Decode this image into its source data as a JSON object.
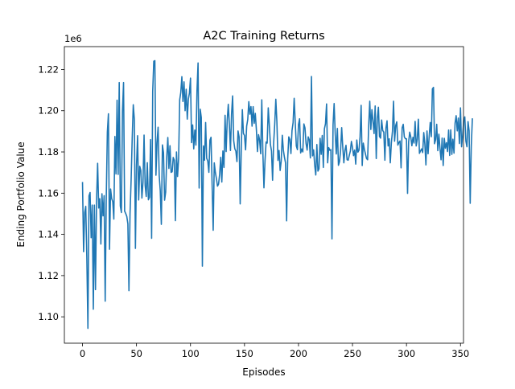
{
  "chart_data": {
    "type": "line",
    "title": "A2C Training Returns",
    "xlabel": "Episodes",
    "ylabel": "Ending Portfolio Value",
    "y_offset_label": "1e6",
    "xlim": [
      -16.8,
      352.8
    ],
    "ylim": [
      1.0872,
      1.2311
    ],
    "x_ticks": [
      0,
      50,
      100,
      150,
      200,
      250,
      300,
      350
    ],
    "x_tick_labels": [
      "0",
      "50",
      "100",
      "150",
      "200",
      "250",
      "300",
      "350"
    ],
    "y_ticks": [
      1.1,
      1.12,
      1.14,
      1.16,
      1.18,
      1.2,
      1.22
    ],
    "y_tick_labels": [
      "1.10",
      "1.12",
      "1.14",
      "1.16",
      "1.18",
      "1.20",
      "1.22"
    ],
    "grid": false,
    "legend": "none",
    "series_color": "#1f77b4",
    "series": [
      {
        "x_start": 0,
        "x_step": 1,
        "values": [
          1.1651,
          1.1316,
          1.1506,
          1.1536,
          1.1288,
          1.0944,
          1.1587,
          1.1603,
          1.1384,
          1.1542,
          1.1037,
          1.1542,
          1.1132,
          1.1565,
          1.1745,
          1.1528,
          1.1573,
          1.1353,
          1.1597,
          1.149,
          1.1588,
          1.1076,
          1.1579,
          1.1896,
          1.1985,
          1.1328,
          1.162,
          1.1574,
          1.1559,
          1.1474,
          1.1875,
          1.1693,
          1.2051,
          1.1691,
          1.2137,
          1.1538,
          1.1506,
          1.1997,
          1.2137,
          1.1513,
          1.1501,
          1.1487,
          1.1451,
          1.1127,
          1.15,
          1.1662,
          1.1864,
          1.2029,
          1.1958,
          1.1332,
          1.1734,
          1.1879,
          1.1567,
          1.173,
          1.171,
          1.1576,
          1.1653,
          1.1882,
          1.1638,
          1.1584,
          1.1748,
          1.1568,
          1.158,
          1.186,
          1.1381,
          1.2094,
          1.224,
          1.2243,
          1.1687,
          1.1845,
          1.192,
          1.1687,
          1.1612,
          1.1449,
          1.1834,
          1.1797,
          1.1566,
          1.1605,
          1.1776,
          1.187,
          1.172,
          1.183,
          1.1701,
          1.1704,
          1.1773,
          1.176,
          1.1467,
          1.18,
          1.1681,
          1.1768,
          1.2053,
          1.2089,
          1.2165,
          1.2045,
          1.214,
          1.2,
          1.2104,
          1.1959,
          1.2055,
          1.2086,
          1.2158,
          1.1845,
          1.1931,
          1.1815,
          1.1906,
          1.1833,
          1.2097,
          1.2232,
          1.1625,
          1.2007,
          1.1967,
          1.1246,
          1.1829,
          1.176,
          1.1943,
          1.1769,
          1.1756,
          1.1701,
          1.1857,
          1.1871,
          1.1643,
          1.142,
          1.1747,
          1.1701,
          1.1671,
          1.1634,
          1.1644,
          1.1693,
          1.1774,
          1.1654,
          1.1805,
          1.1725,
          1.1978,
          1.1802,
          1.1955,
          1.2031,
          1.1931,
          1.1807,
          1.1982,
          1.2072,
          1.1855,
          1.1816,
          1.1804,
          1.1753,
          1.1902,
          1.1873,
          1.1548,
          1.1813,
          1.2005,
          1.189,
          1.188,
          1.181,
          1.1925,
          1.1957,
          1.2044,
          1.1983,
          1.202,
          1.1925,
          1.202,
          1.1939,
          1.1987,
          1.1908,
          1.1802,
          1.1884,
          1.1857,
          1.1791,
          1.2053,
          1.1799,
          1.1626,
          1.1758,
          1.1848,
          1.1843,
          1.2014,
          1.193,
          1.1836,
          1.1805,
          1.1663,
          1.1844,
          1.1936,
          1.2056,
          1.1946,
          1.1759,
          1.1807,
          1.171,
          1.1756,
          1.1881,
          1.1808,
          1.1774,
          1.1747,
          1.1466,
          1.1766,
          1.1873,
          1.1861,
          1.1792,
          1.1904,
          1.1942,
          1.206,
          1.1942,
          1.1829,
          1.1811,
          1.1933,
          1.1961,
          1.1795,
          1.1814,
          1.18,
          1.1936,
          1.1917,
          1.1841,
          1.1809,
          1.1873,
          1.1859,
          1.1771,
          1.2166,
          1.1781,
          1.181,
          1.1736,
          1.1688,
          1.1836,
          1.1707,
          1.1718,
          1.1866,
          1.1788,
          1.188,
          1.1725,
          1.1912,
          1.1937,
          1.2033,
          1.1747,
          1.1821,
          1.1808,
          1.1811,
          1.1378,
          1.1931,
          1.2035,
          1.1888,
          1.179,
          1.1914,
          1.1735,
          1.1753,
          1.1808,
          1.1918,
          1.1823,
          1.1747,
          1.1808,
          1.1832,
          1.1762,
          1.176,
          1.1783,
          1.1804,
          1.1851,
          1.1822,
          1.1782,
          1.1809,
          1.1741,
          1.1858,
          1.1799,
          1.1808,
          1.1873,
          1.2026,
          1.1734,
          1.1843,
          1.1813,
          1.179,
          1.1768,
          1.1762,
          1.1927,
          1.2046,
          1.1909,
          1.2005,
          1.195,
          1.1889,
          1.2023,
          1.1768,
          1.1962,
          1.2017,
          1.1875,
          1.1867,
          1.1955,
          1.1904,
          1.1896,
          1.176,
          1.1916,
          1.1951,
          1.1829,
          1.1864,
          1.1747,
          1.1844,
          1.19,
          1.2046,
          1.1852,
          1.1928,
          1.1946,
          1.1833,
          1.1846,
          1.1853,
          1.1723,
          1.1917,
          1.1934,
          1.1873,
          1.1864,
          1.1864,
          1.1599,
          1.1849,
          1.1896,
          1.1872,
          1.183,
          1.1871,
          1.1843,
          1.1948,
          1.1829,
          1.1861,
          1.1959,
          1.1793,
          1.1805,
          1.1815,
          1.1797,
          1.1894,
          1.1839,
          1.1737,
          1.1902,
          1.1791,
          1.1875,
          1.1943,
          1.1874,
          1.2106,
          1.2113,
          1.184,
          1.186,
          1.1934,
          1.1806,
          1.1886,
          1.1818,
          1.1762,
          1.1867,
          1.1734,
          1.1866,
          1.1818,
          1.1845,
          1.1802,
          1.1906,
          1.1783,
          1.1907,
          1.1788,
          1.1862,
          1.1794,
          1.194,
          1.1976,
          1.1902,
          1.1964,
          1.1841,
          1.2014,
          1.1825,
          1.188,
          1.1953,
          1.197,
          1.1853,
          1.1825,
          1.1947,
          1.1902,
          1.1551,
          1.1827,
          1.196
        ]
      }
    ]
  }
}
